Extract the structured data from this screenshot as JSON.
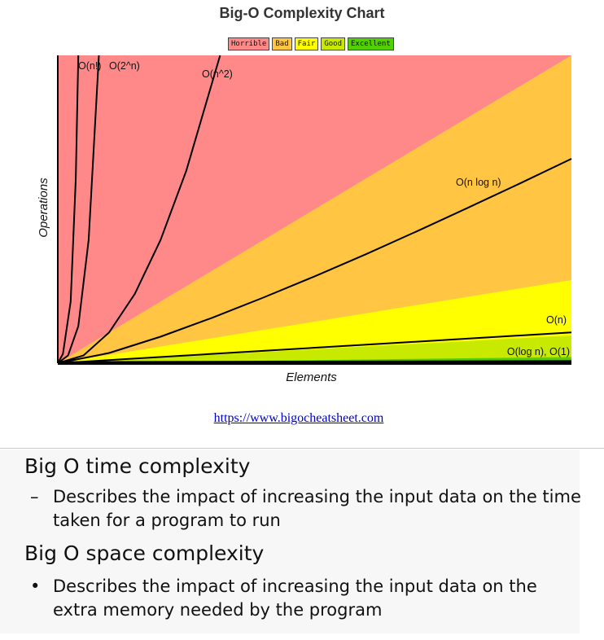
{
  "chart_data": {
    "type": "area",
    "title": "Big-O Complexity Chart",
    "xlabel": "Elements",
    "ylabel": "Operations",
    "xlim": [
      0,
      100
    ],
    "ylim": [
      0,
      1000
    ],
    "legend": [
      {
        "name": "Horrible",
        "color": "#ff8989"
      },
      {
        "name": "Bad",
        "color": "#ffc543"
      },
      {
        "name": "Fair",
        "color": "#ffff00"
      },
      {
        "name": "Good",
        "color": "#c8ea00"
      },
      {
        "name": "Excellent",
        "color": "#53d000"
      }
    ],
    "legend_position": "top-center",
    "regions": [
      {
        "name": "Horrible",
        "color": "#ff8989",
        "boundary": [
          [
            0,
            0
          ],
          [
            0,
            1000
          ]
        ]
      },
      {
        "name": "Bad",
        "color": "#ffc543",
        "boundary": [
          [
            0,
            0
          ],
          [
            100,
            1000
          ]
        ]
      },
      {
        "name": "Fair",
        "color": "#ffff00",
        "boundary": [
          [
            0,
            0
          ],
          [
            100,
            270
          ]
        ]
      },
      {
        "name": "Good",
        "color": "#c8ea00",
        "boundary": [
          [
            0,
            0
          ],
          [
            100,
            90
          ]
        ]
      },
      {
        "name": "Excellent",
        "color": "#53d000",
        "boundary": [
          [
            0,
            0
          ],
          [
            100,
            20
          ]
        ]
      }
    ],
    "series": [
      {
        "name": "O(n!)",
        "points": [
          [
            0,
            0
          ],
          [
            1,
            30
          ],
          [
            2.5,
            200
          ],
          [
            3.5,
            600
          ],
          [
            4,
            1000
          ]
        ]
      },
      {
        "name": "O(2^n)",
        "points": [
          [
            0,
            0
          ],
          [
            2,
            25
          ],
          [
            4,
            120
          ],
          [
            6,
            400
          ],
          [
            8,
            1000
          ]
        ]
      },
      {
        "name": "O(n^2)",
        "points": [
          [
            0,
            0
          ],
          [
            5,
            25
          ],
          [
            10,
            100
          ],
          [
            15,
            225
          ],
          [
            20,
            400
          ],
          [
            25,
            625
          ],
          [
            31.6,
            1000
          ]
        ]
      },
      {
        "name": "O(n log n)",
        "points": [
          [
            0,
            0
          ],
          [
            10,
            33
          ],
          [
            20,
            86
          ],
          [
            30,
            147
          ],
          [
            40,
            213
          ],
          [
            50,
            282
          ],
          [
            60,
            354
          ],
          [
            70,
            429
          ],
          [
            80,
            506
          ],
          [
            90,
            584
          ],
          [
            100,
            664
          ]
        ]
      },
      {
        "name": "O(n)",
        "points": [
          [
            0,
            0
          ],
          [
            100,
            100
          ]
        ]
      },
      {
        "name": "O(log n), O(1)",
        "points": [
          [
            0,
            0
          ],
          [
            1,
            3
          ],
          [
            5,
            4
          ],
          [
            100,
            7
          ]
        ]
      }
    ]
  },
  "source": {
    "url_text": "https://www.bigocheatsheet.com"
  },
  "notes": {
    "time_heading": "Big O time complexity",
    "time_marker": "–",
    "time_text": "Describes the impact of increasing the input data on the time taken for a program to run",
    "space_heading": "Big O space complexity",
    "space_marker": "•",
    "space_text": "Describes the impact of increasing the input data on the extra memory needed by the program"
  }
}
